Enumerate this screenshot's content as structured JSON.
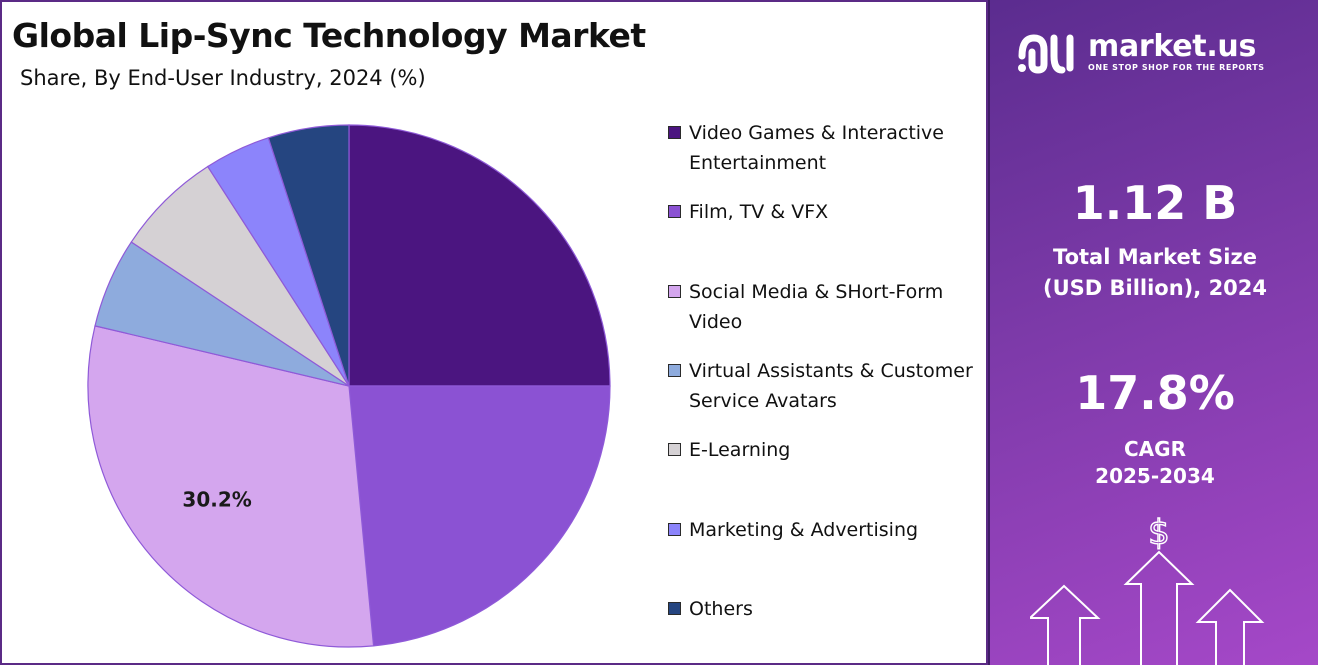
{
  "header": {
    "title": "Global Lip-Sync Technology Market",
    "subtitle": "Share, By End-User Industry, 2024 (%)"
  },
  "chart_data": {
    "type": "pie",
    "title": "Global Lip-Sync Technology Market",
    "subtitle": "Share, By End-User Industry, 2024 (%)",
    "categories": [
      "Video Games & Interactive Entertainment",
      "Film, TV & VFX",
      "Social Media & SHort-Form Video",
      "Virtual Assistants & Customer Service Avatars",
      "E-Learning",
      "Marketing & Advertising",
      "Others"
    ],
    "values": [
      25.0,
      23.5,
      30.2,
      5.6,
      6.6,
      4.1,
      5.0
    ],
    "colors": [
      "#4b1580",
      "#8b52d3",
      "#d4a6ee",
      "#8eabdd",
      "#d5d1d4",
      "#8c84fb",
      "#254580"
    ],
    "data_labels": [
      {
        "category": "Social Media & SHort-Form Video",
        "text": "30.2%"
      }
    ],
    "legend_position": "right"
  },
  "legend": {
    "items": [
      {
        "label": "Video Games & Interactive Entertainment",
        "color": "#4b1580"
      },
      {
        "label": "Film, TV & VFX",
        "color": "#8b52d3"
      },
      {
        "label": "Social Media & SHort-Form Video",
        "color": "#d4a6ee"
      },
      {
        "label": "Virtual Assistants & Customer Service Avatars",
        "color": "#8eabdd"
      },
      {
        "label": "E-Learning",
        "color": "#d5d1d4"
      },
      {
        "label": "Marketing & Advertising",
        "color": "#8c84fb"
      },
      {
        "label": "Others",
        "color": "#254580"
      }
    ]
  },
  "sidebar": {
    "logo_name": "market.us",
    "logo_tagline": "ONE STOP SHOP FOR THE REPORTS",
    "logo_icon": "market-us-logo-icon",
    "market_size_value": "1.12 B",
    "market_size_label_line1": "Total Market Size",
    "market_size_label_line2": "(USD Billion), 2024",
    "cagr_value": "17.8%",
    "cagr_label": "CAGR",
    "cagr_period": "2025-2034",
    "dollar_symbol": "$",
    "arrows_icon": "growth-arrows-icon"
  }
}
